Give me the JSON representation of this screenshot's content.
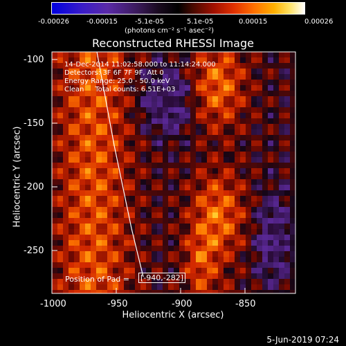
{
  "colorbar": {
    "ticks": [
      "-0.00026",
      "-0.00015",
      "-5.1e-05",
      "5.1e-05",
      "0.00015",
      "0.00026"
    ],
    "units": "(photons cm⁻² s⁻¹ asec⁻²)"
  },
  "title": "Reconstructed RHESSI Image",
  "annotations": {
    "time_range": "14-Dec-2014 11:02:58.000 to 11:14:24.000",
    "detectors": "Detectors: 3F 6F 7F 9F, Att 0",
    "energy": "Energy Range: 25.0 - 50.0 keV",
    "method": "Clean     Total counts: 6.51E+03"
  },
  "axes": {
    "xlabel": "Heliocentric X (arcsec)",
    "ylabel": "Heliocentric Y (arcsec)",
    "x_ticks": [
      "-1000",
      "-950",
      "-900",
      "-850"
    ],
    "y_ticks": [
      "-100",
      "-150",
      "-200",
      "-250"
    ],
    "xlim": [
      -1000,
      -812
    ],
    "ylim": [
      -285,
      -95
    ]
  },
  "position_readout": {
    "label": "Position of Pad =",
    "value": "[-940,-282]"
  },
  "date_stamp": "5-Jun-2019 07:24",
  "colors": {
    "background": "#000000",
    "low": "#2b0c3a",
    "high": "#ffffff"
  }
}
